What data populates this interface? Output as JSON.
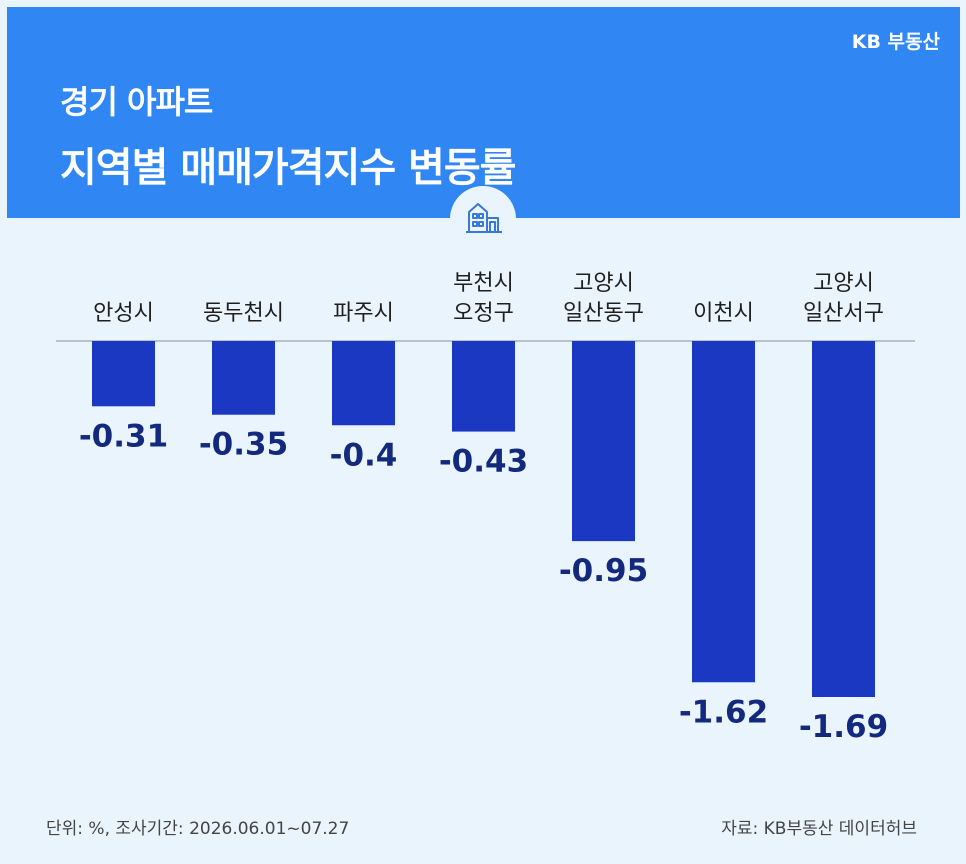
{
  "header": {
    "brand": "KB 부동산",
    "subtitle": "경기 아파트",
    "title": "지역별 매매가격지수 변동률"
  },
  "icons": {
    "building": "building-icon"
  },
  "colors": {
    "header_bg": "#3087f4",
    "page_bg": "#eaf4fd",
    "bar": "#1a38c2",
    "value_label": "#13297e"
  },
  "footer": {
    "unit_period": "단위: %, 조사기간: 2026.06.01~07.27",
    "source": "자료: KB부동산 데이터허브"
  },
  "chart_data": {
    "type": "bar",
    "title": "지역별 매매가격지수 변동률",
    "categories": [
      [
        "안성시"
      ],
      [
        "동두천시"
      ],
      [
        "파주시"
      ],
      [
        "부천시",
        "오정구"
      ],
      [
        "고양시",
        "일산동구"
      ],
      [
        "이천시"
      ],
      [
        "고양시",
        "일산서구"
      ]
    ],
    "values": [
      -0.31,
      -0.35,
      -0.4,
      -0.43,
      -0.95,
      -1.62,
      -1.69
    ],
    "value_labels": [
      "-0.31",
      "-0.35",
      "-0.4",
      "-0.43",
      "-0.95",
      "-1.62",
      "-1.69"
    ],
    "ylim": [
      -1.69,
      0
    ],
    "unit": "%"
  }
}
